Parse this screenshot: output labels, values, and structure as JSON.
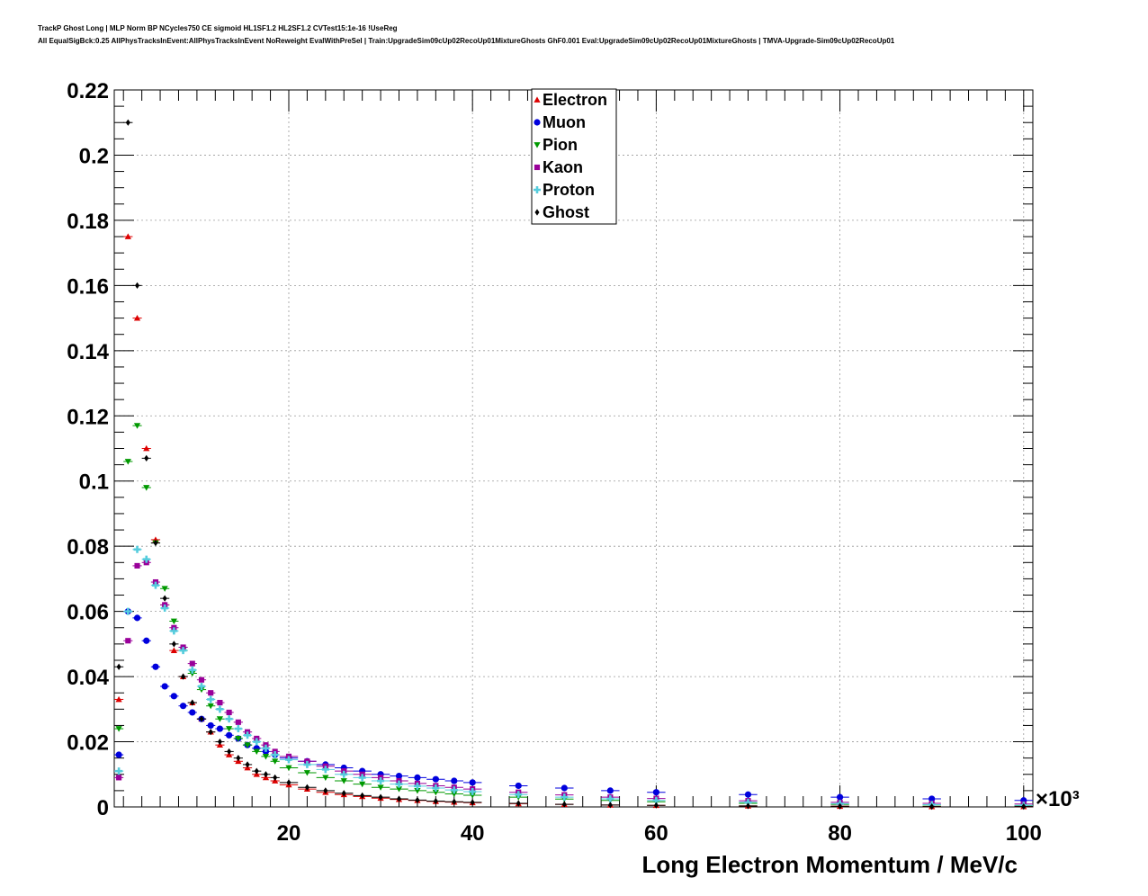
{
  "header": {
    "line1": "TrackP Ghost Long | MLP Norm BP NCycles750 CE sigmoid HL1SF1.2 HL2SF1.2 CVTest15:1e-16 !UseReg",
    "line2": "All EqualSigBck:0.25 AllPhysTracksInEvent:AllPhysTracksInEvent NoReweight EvalWithPreSel | Train:UpgradeSim09cUp02RecoUp01MixtureGhosts GhF0.001 Eval:UpgradeSim09cUp02RecoUp01MixtureGhosts | TMVA-Upgrade-Sim09cUp02RecoUp01"
  },
  "chart_data": {
    "type": "scatter",
    "title": "",
    "xlabel": "Long Electron Momentum / MeV/c",
    "x_multiplier": "×10³",
    "ylabel": "",
    "xlim": [
      1,
      101
    ],
    "ylim": [
      0,
      0.22
    ],
    "x_ticks": [
      20,
      40,
      60,
      80,
      100
    ],
    "y_ticks": [
      0,
      0.02,
      0.04,
      0.06,
      0.08,
      0.1,
      0.12,
      0.14,
      0.16,
      0.18,
      0.2,
      0.22
    ],
    "y_tick_labels": [
      "0",
      "0.02",
      "0.04",
      "0.06",
      "0.08",
      "0.1",
      "0.12",
      "0.14",
      "0.16",
      "0.18",
      "0.2",
      "0.22"
    ],
    "grid": true,
    "legend_position": "top-center",
    "series": [
      {
        "name": "Electron",
        "color": "#dd0000",
        "marker": "triangle-up",
        "x": [
          1.5,
          2.5,
          3.5,
          4.5,
          5.5,
          6.5,
          7.5,
          8.5,
          9.5,
          10.5,
          11.5,
          12.5,
          13.5,
          14.5,
          15.5,
          16.5,
          17.5,
          18.5,
          20,
          22,
          24,
          26,
          28,
          30,
          32,
          34,
          36,
          38,
          40,
          45,
          50,
          55,
          60,
          70,
          80,
          90,
          100
        ],
        "y": [
          0.033,
          0.175,
          0.15,
          0.11,
          0.082,
          0.062,
          0.048,
          0.04,
          0.032,
          0.027,
          0.023,
          0.019,
          0.016,
          0.014,
          0.012,
          0.01,
          0.009,
          0.008,
          0.0068,
          0.0055,
          0.0045,
          0.0038,
          0.0032,
          0.0027,
          0.0023,
          0.002,
          0.0017,
          0.0015,
          0.0013,
          0.001,
          0.0008,
          0.0006,
          0.0005,
          0.0003,
          0.0002,
          0.0001,
          0.0001
        ]
      },
      {
        "name": "Muon",
        "color": "#0000dd",
        "marker": "circle",
        "x": [
          1.5,
          2.5,
          3.5,
          4.5,
          5.5,
          6.5,
          7.5,
          8.5,
          9.5,
          10.5,
          11.5,
          12.5,
          13.5,
          14.5,
          15.5,
          16.5,
          17.5,
          18.5,
          20,
          22,
          24,
          26,
          28,
          30,
          32,
          34,
          36,
          38,
          40,
          45,
          50,
          55,
          60,
          70,
          80,
          90,
          100
        ],
        "y": [
          0.016,
          0.06,
          0.058,
          0.051,
          0.043,
          0.037,
          0.034,
          0.031,
          0.029,
          0.027,
          0.025,
          0.024,
          0.022,
          0.021,
          0.019,
          0.018,
          0.017,
          0.016,
          0.015,
          0.014,
          0.013,
          0.012,
          0.011,
          0.01,
          0.0095,
          0.009,
          0.0085,
          0.008,
          0.0075,
          0.0065,
          0.0058,
          0.005,
          0.0045,
          0.0038,
          0.003,
          0.0025,
          0.002
        ]
      },
      {
        "name": "Pion",
        "color": "#009900",
        "marker": "triangle-down",
        "x": [
          1.5,
          2.5,
          3.5,
          4.5,
          5.5,
          6.5,
          7.5,
          8.5,
          9.5,
          10.5,
          11.5,
          12.5,
          13.5,
          14.5,
          15.5,
          16.5,
          17.5,
          18.5,
          20,
          22,
          24,
          26,
          28,
          30,
          32,
          34,
          36,
          38,
          40,
          45,
          50,
          55,
          60,
          70,
          80,
          90,
          100
        ],
        "y": [
          0.024,
          0.106,
          0.117,
          0.098,
          0.081,
          0.067,
          0.057,
          0.048,
          0.041,
          0.036,
          0.031,
          0.027,
          0.024,
          0.021,
          0.019,
          0.017,
          0.0155,
          0.014,
          0.012,
          0.0105,
          0.009,
          0.008,
          0.007,
          0.006,
          0.0055,
          0.005,
          0.0045,
          0.004,
          0.0036,
          0.003,
          0.0024,
          0.002,
          0.0016,
          0.0011,
          0.0008,
          0.0006,
          0.0004
        ]
      },
      {
        "name": "Kaon",
        "color": "#990099",
        "marker": "square",
        "x": [
          1.5,
          2.5,
          3.5,
          4.5,
          5.5,
          6.5,
          7.5,
          8.5,
          9.5,
          10.5,
          11.5,
          12.5,
          13.5,
          14.5,
          15.5,
          16.5,
          17.5,
          18.5,
          20,
          22,
          24,
          26,
          28,
          30,
          32,
          34,
          36,
          38,
          40,
          45,
          50,
          55,
          60,
          70,
          80,
          90,
          100
        ],
        "y": [
          0.009,
          0.051,
          0.074,
          0.075,
          0.069,
          0.062,
          0.055,
          0.049,
          0.044,
          0.039,
          0.035,
          0.032,
          0.029,
          0.026,
          0.023,
          0.021,
          0.019,
          0.017,
          0.0155,
          0.014,
          0.0125,
          0.011,
          0.01,
          0.009,
          0.008,
          0.0072,
          0.0065,
          0.006,
          0.0055,
          0.0045,
          0.0037,
          0.003,
          0.0026,
          0.0019,
          0.0014,
          0.0011,
          0.0009
        ]
      },
      {
        "name": "Proton",
        "color": "#55ccdd",
        "marker": "cross",
        "x": [
          1.5,
          2.5,
          3.5,
          4.5,
          5.5,
          6.5,
          7.5,
          8.5,
          9.5,
          10.5,
          11.5,
          12.5,
          13.5,
          14.5,
          15.5,
          16.5,
          17.5,
          18.5,
          20,
          22,
          24,
          26,
          28,
          30,
          32,
          34,
          36,
          38,
          40,
          45,
          50,
          55,
          60,
          70,
          80,
          90,
          100
        ],
        "y": [
          0.011,
          0.06,
          0.079,
          0.076,
          0.068,
          0.061,
          0.054,
          0.048,
          0.042,
          0.037,
          0.033,
          0.03,
          0.027,
          0.024,
          0.022,
          0.02,
          0.018,
          0.016,
          0.0145,
          0.013,
          0.0115,
          0.01,
          0.009,
          0.008,
          0.007,
          0.0064,
          0.0058,
          0.0052,
          0.0047,
          0.0038,
          0.003,
          0.0025,
          0.002,
          0.0014,
          0.001,
          0.0007,
          0.0005
        ]
      },
      {
        "name": "Ghost",
        "color": "#000000",
        "marker": "diamond",
        "x": [
          1.5,
          2.5,
          3.5,
          4.5,
          5.5,
          6.5,
          7.5,
          8.5,
          9.5,
          10.5,
          11.5,
          12.5,
          13.5,
          14.5,
          15.5,
          16.5,
          17.5,
          18.5,
          20,
          22,
          24,
          26,
          28,
          30,
          32,
          34,
          36,
          38,
          40,
          45,
          50,
          55,
          60,
          70,
          80,
          90,
          100
        ],
        "y": [
          0.043,
          0.21,
          0.16,
          0.107,
          0.081,
          0.064,
          0.05,
          0.04,
          0.032,
          0.027,
          0.023,
          0.02,
          0.017,
          0.015,
          0.013,
          0.011,
          0.01,
          0.009,
          0.0075,
          0.006,
          0.005,
          0.0042,
          0.0035,
          0.003,
          0.0025,
          0.0021,
          0.0018,
          0.0016,
          0.0014,
          0.0011,
          0.0008,
          0.0006,
          0.0005,
          0.0003,
          0.0002,
          0.0001,
          0.0001
        ]
      }
    ]
  }
}
